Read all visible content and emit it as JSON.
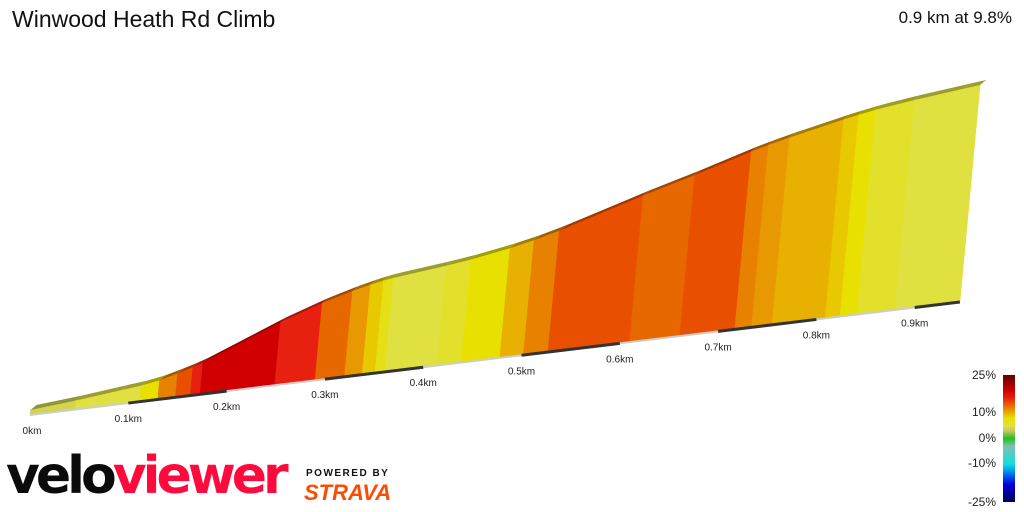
{
  "header": {
    "title": "Winwood Heath Rd Climb",
    "summary": "0.9 km at 9.8%"
  },
  "branding": {
    "logo_part1": "velo",
    "logo_part2": "viewer",
    "powered_by": "POWERED BY",
    "strava": "STRAVA"
  },
  "chart_data": {
    "type": "area",
    "title": "Winwood Heath Rd Climb",
    "xlabel": "",
    "ylabel": "",
    "x_ticks": [
      "0km",
      "0.1km",
      "0.2km",
      "0.3km",
      "0.4km",
      "0.5km",
      "0.6km",
      "0.7km",
      "0.8km",
      "0.9km"
    ],
    "x_tick_values": [
      0,
      0.1,
      0.2,
      0.3,
      0.4,
      0.5,
      0.6,
      0.7,
      0.8,
      0.9
    ],
    "xlim": [
      0,
      0.946
    ],
    "segments": [
      {
        "start_km": 0.0,
        "end_km": 0.046,
        "gradient": 4
      },
      {
        "start_km": 0.046,
        "end_km": 0.092,
        "gradient": 5
      },
      {
        "start_km": 0.092,
        "end_km": 0.112,
        "gradient": 5
      },
      {
        "start_km": 0.112,
        "end_km": 0.13,
        "gradient": 8
      },
      {
        "start_km": 0.13,
        "end_km": 0.148,
        "gradient": 12
      },
      {
        "start_km": 0.148,
        "end_km": 0.163,
        "gradient": 14
      },
      {
        "start_km": 0.163,
        "end_km": 0.173,
        "gradient": 16
      },
      {
        "start_km": 0.173,
        "end_km": 0.249,
        "gradient": 19
      },
      {
        "start_km": 0.249,
        "end_km": 0.29,
        "gradient": 16
      },
      {
        "start_km": 0.29,
        "end_km": 0.32,
        "gradient": 13
      },
      {
        "start_km": 0.32,
        "end_km": 0.338,
        "gradient": 11
      },
      {
        "start_km": 0.338,
        "end_km": 0.351,
        "gradient": 9
      },
      {
        "start_km": 0.351,
        "end_km": 0.361,
        "gradient": 7
      },
      {
        "start_km": 0.361,
        "end_km": 0.414,
        "gradient": 5
      },
      {
        "start_km": 0.414,
        "end_km": 0.439,
        "gradient": 6
      },
      {
        "start_km": 0.439,
        "end_km": 0.478,
        "gradient": 8
      },
      {
        "start_km": 0.478,
        "end_km": 0.502,
        "gradient": 10
      },
      {
        "start_km": 0.502,
        "end_km": 0.527,
        "gradient": 12
      },
      {
        "start_km": 0.527,
        "end_km": 0.61,
        "gradient": 14
      },
      {
        "start_km": 0.61,
        "end_km": 0.661,
        "gradient": 13
      },
      {
        "start_km": 0.661,
        "end_km": 0.717,
        "gradient": 14
      },
      {
        "start_km": 0.717,
        "end_km": 0.734,
        "gradient": 12
      },
      {
        "start_km": 0.734,
        "end_km": 0.755,
        "gradient": 11
      },
      {
        "start_km": 0.755,
        "end_km": 0.809,
        "gradient": 10
      },
      {
        "start_km": 0.809,
        "end_km": 0.824,
        "gradient": 9
      },
      {
        "start_km": 0.824,
        "end_km": 0.841,
        "gradient": 8
      },
      {
        "start_km": 0.841,
        "end_km": 0.88,
        "gradient": 6
      },
      {
        "start_km": 0.88,
        "end_km": 0.931,
        "gradient": 5
      },
      {
        "start_km": 0.931,
        "end_km": 0.946,
        "gradient": 5
      }
    ],
    "legend": {
      "labels": [
        "25%",
        "10%",
        "0%",
        "-10%",
        "-25%"
      ],
      "label_values": [
        25,
        10,
        0,
        -10,
        -25
      ],
      "color_scale": [
        {
          "value": -25,
          "color": "#000050"
        },
        {
          "value": -18,
          "color": "#0000e0"
        },
        {
          "value": -13,
          "color": "#0090f0"
        },
        {
          "value": -10,
          "color": "#10e0e0"
        },
        {
          "value": -3,
          "color": "#80c0b0"
        },
        {
          "value": 0,
          "color": "#20c020"
        },
        {
          "value": 3,
          "color": "#c8c860"
        },
        {
          "value": 5,
          "color": "#e0e040"
        },
        {
          "value": 8,
          "color": "#e8e000"
        },
        {
          "value": 10,
          "color": "#e8b000"
        },
        {
          "value": 12,
          "color": "#e88000"
        },
        {
          "value": 14,
          "color": "#e85000"
        },
        {
          "value": 16,
          "color": "#e82010"
        },
        {
          "value": 19,
          "color": "#d00000"
        },
        {
          "value": 25,
          "color": "#600000"
        }
      ]
    }
  }
}
